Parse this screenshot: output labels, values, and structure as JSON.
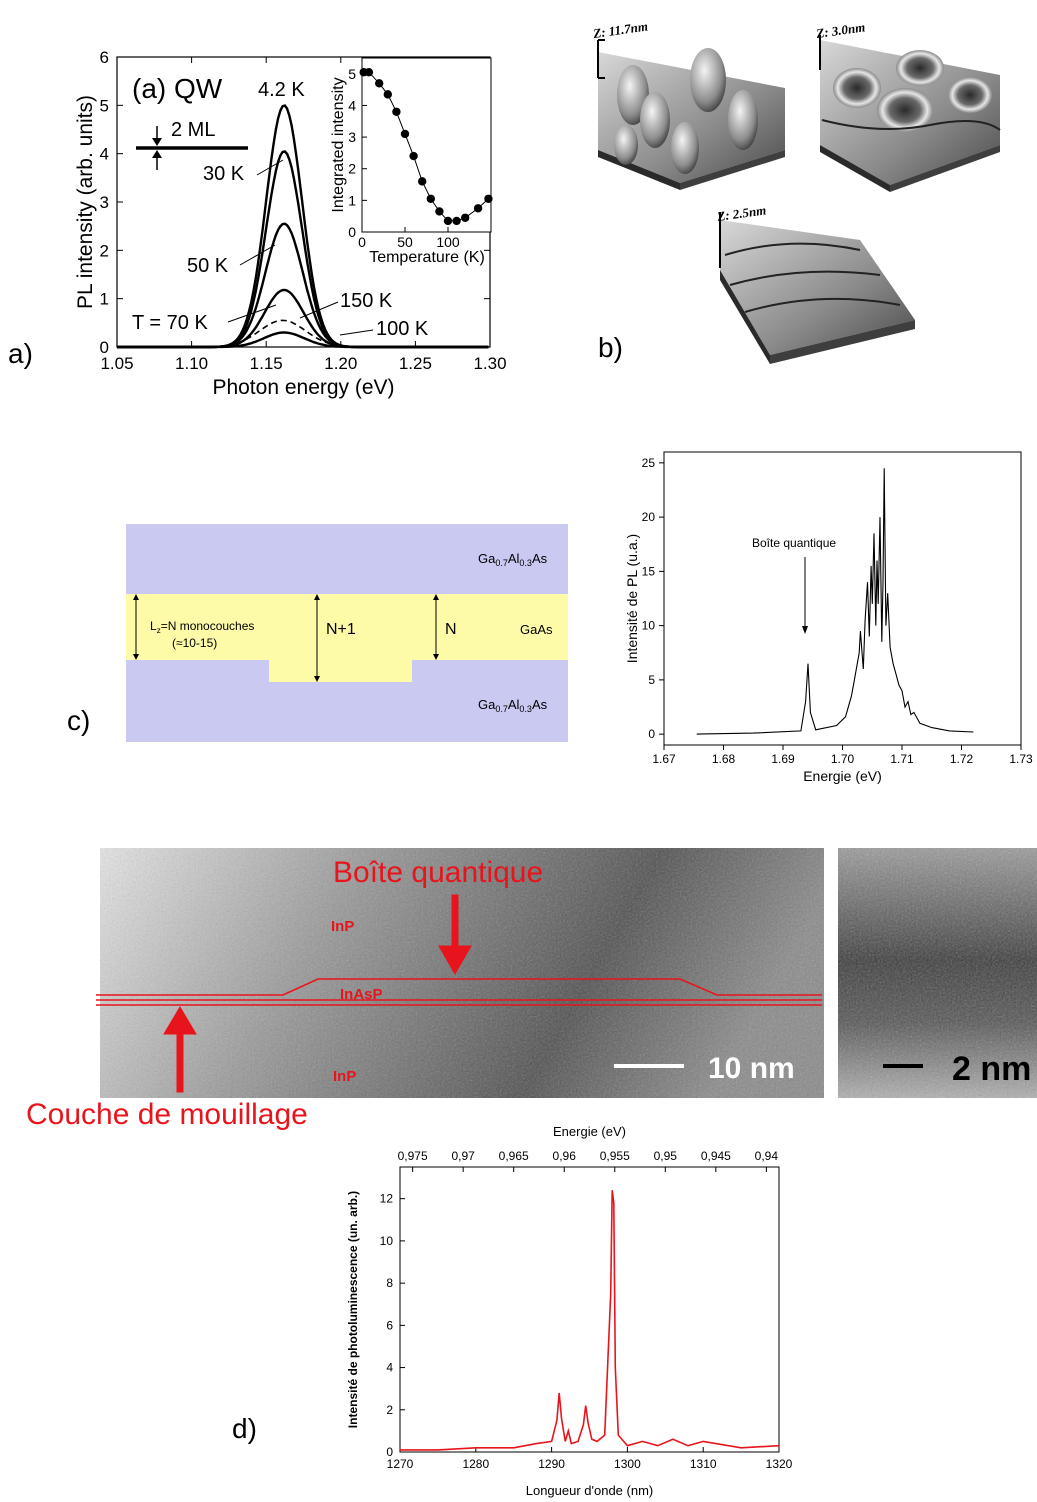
{
  "labels": {
    "a": "a)",
    "b": "b)",
    "c": "c)",
    "d": "d)"
  },
  "panel_a": {
    "title": "(a) QW",
    "ml_label": "2 ML",
    "temperature_labels": [
      "4.2 K",
      "30 K",
      "50 K",
      "150 K",
      "T = 70 K",
      "100 K"
    ],
    "inset": {
      "ylabel": "Integrated intensity",
      "xlabel": "Temperature (K)"
    }
  },
  "panel_b": {
    "afm_labels": [
      "Z: 11.7nm",
      "Z: 3.0nm",
      "Z: 2.5nm"
    ]
  },
  "panel_c": {
    "layers": {
      "top": "Ga0.7Al0.3As",
      "middle": "GaAs",
      "bottom": "Ga0.7Al0.3As"
    },
    "lz_text_1": "L",
    "lz_sub": "z",
    "lz_text_2": "=N monocouches",
    "lz_text_3": "(≈10-15)",
    "n_plus_1": "N+1",
    "n": "N",
    "top_main": "Ga",
    "top_sub1": "0.7",
    "top_mid": "Al",
    "top_sub2": "0.3",
    "top_end": "As"
  },
  "panel_tem": {
    "title": "Boîte quantique",
    "inp_top": "InP",
    "inasp": "InAsP",
    "inp_bottom": "InP",
    "scale1": "10 nm",
    "scale2": "2 nm",
    "wetting": "Couche de mouillage"
  },
  "chart_data": [
    {
      "id": "pl-qw",
      "type": "line",
      "xlabel": "Photon energy (eV)",
      "ylabel": "PL intensity (arb. units)",
      "xlim": [
        1.05,
        1.3
      ],
      "ylim": [
        0,
        6
      ],
      "xticks": [
        "1.05",
        "1.10",
        "1.15",
        "1.20",
        "1.25",
        "1.30"
      ],
      "yticks": [
        "0",
        "1",
        "2",
        "3",
        "4",
        "5",
        "6"
      ],
      "series": [
        {
          "name": "4.2 K",
          "center": 1.162,
          "amplitude": 5.0,
          "width": 0.012,
          "style": "solid"
        },
        {
          "name": "30 K",
          "center": 1.162,
          "amplitude": 4.05,
          "width": 0.012,
          "style": "solid"
        },
        {
          "name": "50 K",
          "center": 1.162,
          "amplitude": 2.55,
          "width": 0.0125,
          "style": "solid"
        },
        {
          "name": "T = 70 K",
          "center": 1.162,
          "amplitude": 1.18,
          "width": 0.013,
          "style": "solid"
        },
        {
          "name": "150 K",
          "center": 1.161,
          "amplitude": 0.55,
          "width": 0.0155,
          "style": "dashed"
        },
        {
          "name": "100 K",
          "center": 1.162,
          "amplitude": 0.3,
          "width": 0.0135,
          "style": "solid"
        }
      ]
    },
    {
      "id": "pl-inset",
      "type": "scatter",
      "xlabel": "Temperature (K)",
      "ylabel": "Integrated intensity",
      "xlim": [
        0,
        150
      ],
      "ylim": [
        0,
        5.5
      ],
      "xticks": [
        "0",
        "50",
        "100"
      ],
      "yticks": [
        "0",
        "1",
        "2",
        "3",
        "4",
        "5"
      ],
      "x": [
        2,
        8,
        20,
        30,
        40,
        50,
        60,
        70,
        80,
        90,
        100,
        110,
        120,
        135,
        147
      ],
      "y": [
        5.05,
        5.05,
        4.7,
        4.35,
        3.8,
        3.1,
        2.4,
        1.6,
        1.05,
        0.65,
        0.35,
        0.35,
        0.45,
        0.75,
        1.05
      ]
    },
    {
      "id": "pl-fr",
      "type": "line",
      "xlabel": "Energie (eV)",
      "ylabel": "Intensité de PL (u.a.)",
      "xlim": [
        1.67,
        1.73
      ],
      "ylim": [
        -1,
        26
      ],
      "xticks": [
        "1.67",
        "1.68",
        "1.69",
        "1.70",
        "1.71",
        "1.72",
        "1.73"
      ],
      "yticks": [
        "0",
        "5",
        "10",
        "15",
        "20",
        "25"
      ],
      "annotation": "Boîte quantique",
      "x": [
        1.6755,
        1.685,
        1.693,
        1.6938,
        1.6942,
        1.6946,
        1.6955,
        1.699,
        1.7005,
        1.7015,
        1.702,
        1.7028,
        1.703,
        1.7035,
        1.7038,
        1.7042,
        1.7045,
        1.7048,
        1.705,
        1.7053,
        1.7056,
        1.7058,
        1.706,
        1.7063,
        1.7066,
        1.7068,
        1.707,
        1.7073,
        1.7076,
        1.708,
        1.7085,
        1.709,
        1.7095,
        1.71,
        1.7105,
        1.711,
        1.7115,
        1.712,
        1.713,
        1.715,
        1.718,
        1.722
      ],
      "y": [
        0.0,
        0.1,
        0.3,
        3.0,
        6.5,
        2.0,
        0.4,
        0.8,
        1.6,
        3.5,
        5.0,
        7.5,
        9.5,
        6.0,
        10.5,
        14.0,
        9.0,
        15.5,
        12.0,
        18.5,
        10.0,
        16.0,
        12.0,
        20.0,
        8.5,
        14.0,
        24.5,
        10.0,
        13.0,
        8.0,
        6.5,
        5.5,
        4.5,
        4.0,
        2.5,
        3.0,
        1.8,
        2.0,
        1.0,
        0.6,
        0.3,
        0.2
      ]
    },
    {
      "id": "pl-d",
      "type": "line",
      "xlabel": "Longueur d'onde (nm)",
      "ylabel": "Intensité de photoluminescence (un. arb.)",
      "x2label": "Energie (eV)",
      "xlim": [
        1270,
        1320
      ],
      "ylim": [
        0,
        13.5
      ],
      "xticks": [
        "1270",
        "1280",
        "1290",
        "1300",
        "1310",
        "1320"
      ],
      "x2ticks": [
        "0,975",
        "0,97",
        "0,965",
        "0,96",
        "0,955",
        "0,95",
        "0,945",
        "0,94"
      ],
      "yticks": [
        "0",
        "2",
        "4",
        "6",
        "8",
        "10",
        "12"
      ],
      "x": [
        1270,
        1275,
        1280,
        1285,
        1288,
        1290,
        1290.7,
        1291,
        1291.3,
        1291.8,
        1292.2,
        1292.6,
        1293.5,
        1294.2,
        1294.5,
        1294.8,
        1295.3,
        1296,
        1297,
        1297.8,
        1298,
        1298.2,
        1298.4,
        1298.8,
        1300,
        1302,
        1304,
        1306,
        1308,
        1310,
        1315,
        1320
      ],
      "y": [
        0.1,
        0.1,
        0.2,
        0.2,
        0.4,
        0.5,
        1.5,
        2.8,
        1.6,
        0.5,
        1.0,
        0.4,
        0.5,
        1.3,
        2.2,
        1.4,
        0.6,
        0.5,
        0.8,
        7.5,
        12.4,
        11.8,
        4.0,
        0.8,
        0.3,
        0.5,
        0.3,
        0.6,
        0.3,
        0.5,
        0.2,
        0.3
      ]
    }
  ]
}
